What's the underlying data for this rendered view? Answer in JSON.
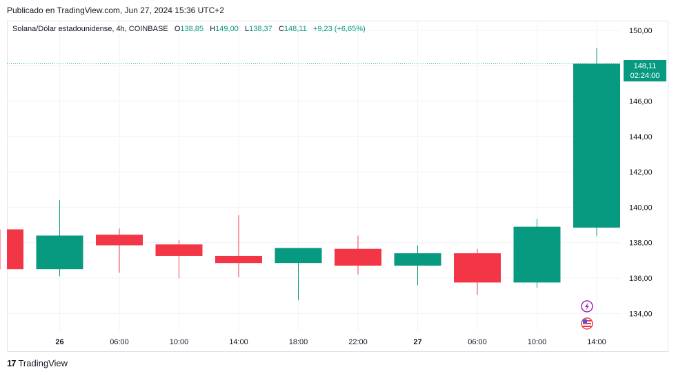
{
  "header": {
    "published": "Publicado en TradingView.com, Jun 27, 2024 15:36 UTC+2"
  },
  "legend": {
    "symbol": "Solana/Dólar estadounidense, 4h, COINBASE",
    "o_label": "O",
    "o_value": "138,85",
    "h_label": "H",
    "h_value": "149,00",
    "l_label": "L",
    "l_value": "138,37",
    "c_label": "C",
    "c_value": "148,11",
    "change": "+9,23 (+6,65%)"
  },
  "price_tag": {
    "price": "148,11",
    "countdown": "02:24:00"
  },
  "footer": {
    "brand": "TradingView",
    "mark": "17"
  },
  "colors": {
    "up": "#089981",
    "down": "#f23645",
    "grid": "#f0f3fa",
    "text": "#131722"
  },
  "chart_data": {
    "type": "candlestick",
    "title": "Solana/Dólar estadounidense, 4h, COINBASE",
    "ylim": [
      133,
      150.5
    ],
    "yticks": [
      134,
      136,
      138,
      140,
      142,
      144,
      146,
      148,
      150
    ],
    "ytick_labels": [
      "134,00",
      "136,00",
      "138,00",
      "140,00",
      "142,00",
      "144,00",
      "146,00",
      "148,00",
      "150,00"
    ],
    "xticks": [
      "26",
      "06:00",
      "10:00",
      "14:00",
      "18:00",
      "22:00",
      "27",
      "06:00",
      "10:00",
      "14:00"
    ],
    "last_price": 148.11,
    "candles": [
      {
        "open": 138.75,
        "high": 138.75,
        "low": 136.5,
        "close": 136.5
      },
      {
        "open": 136.5,
        "high": 140.4,
        "low": 136.1,
        "close": 138.4
      },
      {
        "open": 138.45,
        "high": 138.8,
        "low": 136.3,
        "close": 137.85
      },
      {
        "open": 137.9,
        "high": 138.15,
        "low": 136.0,
        "close": 137.25
      },
      {
        "open": 137.25,
        "high": 139.55,
        "low": 136.05,
        "close": 136.85
      },
      {
        "open": 136.85,
        "high": 137.7,
        "low": 134.75,
        "close": 137.7
      },
      {
        "open": 137.65,
        "high": 138.4,
        "low": 136.2,
        "close": 136.7
      },
      {
        "open": 136.7,
        "high": 137.85,
        "low": 135.6,
        "close": 137.4
      },
      {
        "open": 137.4,
        "high": 137.65,
        "low": 135.05,
        "close": 135.75
      },
      {
        "open": 135.75,
        "high": 139.35,
        "low": 135.45,
        "close": 138.9
      },
      {
        "open": 138.85,
        "high": 149.0,
        "low": 138.37,
        "close": 148.11
      }
    ]
  }
}
